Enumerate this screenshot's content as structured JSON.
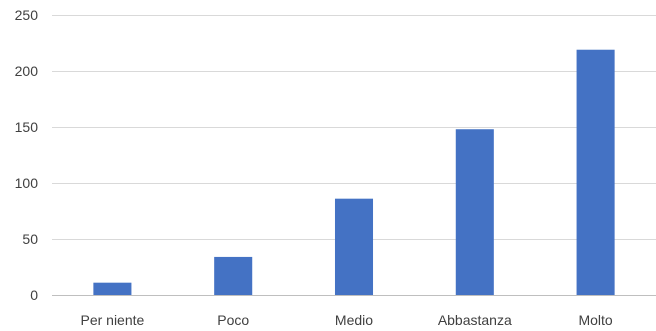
{
  "chart_data": {
    "type": "bar",
    "categories": [
      "Per niente",
      "Poco",
      "Medio",
      "Abbastanza",
      "Molto"
    ],
    "series": [
      {
        "values": [
          11,
          34,
          86,
          148,
          219
        ]
      }
    ],
    "title": "",
    "xlabel": "",
    "ylabel": "",
    "ylim": [
      0,
      250
    ],
    "yticks": [
      0,
      50,
      100,
      150,
      200,
      250
    ],
    "grid": true,
    "legend": "none",
    "bar_color": "#4472C4",
    "grid_color": "#D9D9D9",
    "text_color": "#404040"
  }
}
